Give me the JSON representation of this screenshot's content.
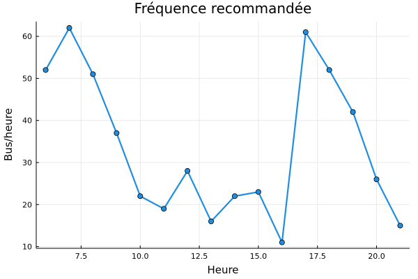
{
  "chart_data": {
    "type": "line",
    "title": "Fréquence recommandée",
    "xlabel": "Heure",
    "ylabel": "Bus/heure",
    "x": [
      6,
      7,
      8,
      9,
      10,
      11,
      12,
      13,
      14,
      15,
      16,
      17,
      18,
      19,
      20,
      21
    ],
    "series": [
      {
        "values": [
          52,
          62,
          51,
          37,
          22,
          19,
          28,
          16,
          22,
          23,
          11,
          61,
          52,
          42,
          26,
          15
        ]
      }
    ],
    "xlim": [
      5.6,
      21.4
    ],
    "ylim": [
      9.6,
      63.5
    ],
    "xticks": [
      7.5,
      10.0,
      12.5,
      15.0,
      17.5,
      20.0
    ],
    "xtick_labels": [
      "7.5",
      "10.0",
      "12.5",
      "15.0",
      "17.5",
      "20.0"
    ],
    "yticks": [
      10,
      20,
      30,
      40,
      50,
      60
    ],
    "ytick_labels": [
      "10",
      "20",
      "30",
      "40",
      "50",
      "60"
    ],
    "grid": true,
    "legend": "none",
    "line_color": "#1f8ee0",
    "marker_color": "#1f8ee0"
  }
}
